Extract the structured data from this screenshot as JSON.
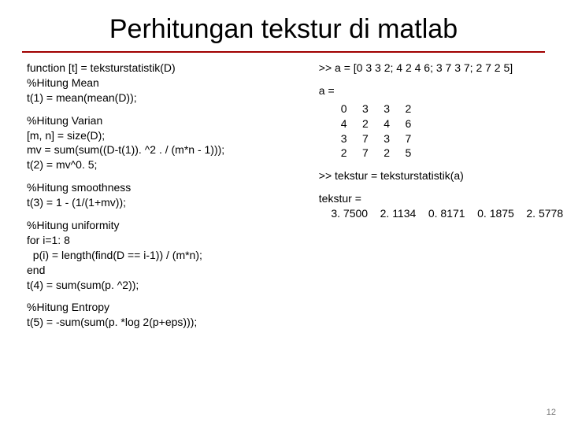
{
  "title": "Perhitungan tekstur di matlab",
  "left": {
    "b1": "function [t] = teksturstatistik(D)\n%Hitung Mean\nt(1) = mean(mean(D));",
    "b2": "%Hitung Varian\n[m, n] = size(D);\nmv = sum(sum((D-t(1)). ^2 . / (m*n - 1)));\nt(2) = mv^0. 5;",
    "b3": "%Hitung smoothness\nt(3) = 1 - (1/(1+mv));",
    "b4": "%Hitung uniformity\nfor i=1: 8\n  p(i) = length(find(D == i-1)) / (m*n);\nend\nt(4) = sum(sum(p. ^2));",
    "b5": "%Hitung Entropy\nt(5) = -sum(sum(p. *log 2(p+eps)));"
  },
  "right": {
    "b1": ">> a = [0 3 3 2; 4 2 4 6; 3 7 3 7; 2 7 2 5]",
    "b2": "a =",
    "matrix": "0     3     3     2\n4     2     4     6\n3     7     3     7\n2     7     2     5",
    "b3": ">> tekstur = teksturstatistik(a)",
    "b4": "tekstur =",
    "b5": "    3. 7500    2. 1134    0. 8171    0. 1875    2. 5778"
  },
  "pagenum": "12",
  "colors": {
    "underline": "#a00000",
    "pagenum": "#777777",
    "text": "#000000",
    "bg": "#ffffff"
  }
}
